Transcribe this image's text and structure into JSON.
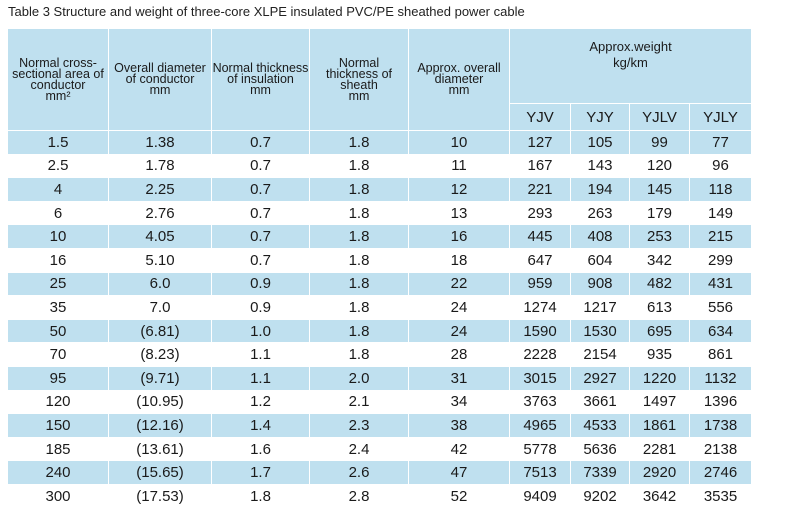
{
  "caption": "Table 3 Structure and weight of three-core XLPE insulated  PVC/PE sheathed power cable",
  "headers": {
    "area": [
      "Normal cross-",
      "sectional area of",
      "conductor",
      "mm²"
    ],
    "diameter_conductor": [
      "Overall diameter",
      "of conductor",
      "mm"
    ],
    "insulation": [
      "Normal thickness",
      "of insulation",
      "mm"
    ],
    "sheath": [
      "Normal",
      "thickness of",
      "sheath",
      "mm"
    ],
    "overall_diameter": [
      "Approx. overall",
      "diameter",
      "mm"
    ],
    "weight": [
      "Approx.weight",
      "kg/km"
    ],
    "weight_types": [
      "YJV",
      "YJY",
      "YJLV",
      "YJLY"
    ]
  },
  "rows": [
    [
      "1.5",
      "1.38",
      "0.7",
      "1.8",
      "10",
      "127",
      "105",
      "99",
      "77"
    ],
    [
      "2.5",
      "1.78",
      "0.7",
      "1.8",
      "11",
      "167",
      "143",
      "120",
      "96"
    ],
    [
      "4",
      "2.25",
      "0.7",
      "1.8",
      "12",
      "221",
      "194",
      "145",
      "118"
    ],
    [
      "6",
      "2.76",
      "0.7",
      "1.8",
      "13",
      "293",
      "263",
      "179",
      "149"
    ],
    [
      "10",
      "4.05",
      "0.7",
      "1.8",
      "16",
      "445",
      "408",
      "253",
      "215"
    ],
    [
      "16",
      "5.10",
      "0.7",
      "1.8",
      "18",
      "647",
      "604",
      "342",
      "299"
    ],
    [
      "25",
      "6.0",
      "0.9",
      "1.8",
      "22",
      "959",
      "908",
      "482",
      "431"
    ],
    [
      "35",
      "7.0",
      "0.9",
      "1.8",
      "24",
      "1274",
      "1217",
      "613",
      "556"
    ],
    [
      "50",
      "(6.81)",
      "1.0",
      "1.8",
      "24",
      "1590",
      "1530",
      "695",
      "634"
    ],
    [
      "70",
      "(8.23)",
      "1.1",
      "1.8",
      "28",
      "2228",
      "2154",
      "935",
      "861"
    ],
    [
      "95",
      "(9.71)",
      "1.1",
      "2.0",
      "31",
      "3015",
      "2927",
      "1220",
      "1132"
    ],
    [
      "120",
      "(10.95)",
      "1.2",
      "2.1",
      "34",
      "3763",
      "3661",
      "1497",
      "1396"
    ],
    [
      "150",
      "(12.16)",
      "1.4",
      "2.3",
      "38",
      "4965",
      "4533",
      "1861",
      "1738"
    ],
    [
      "185",
      "(13.61)",
      "1.6",
      "2.4",
      "42",
      "5778",
      "5636",
      "2281",
      "2138"
    ],
    [
      "240",
      "(15.65)",
      "1.7",
      "2.6",
      "47",
      "7513",
      "7339",
      "2920",
      "2746"
    ],
    [
      "300",
      "(17.53)",
      "1.8",
      "2.8",
      "52",
      "9409",
      "9202",
      "3642",
      "3535"
    ]
  ],
  "colors": {
    "header_background": "#bfe0ef",
    "stripe_background": "#bfe0ef",
    "plain_background": "#ffffff"
  }
}
